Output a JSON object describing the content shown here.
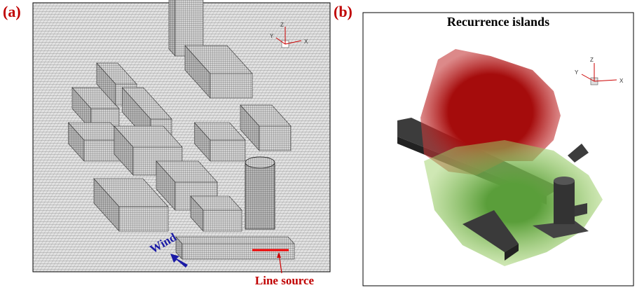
{
  "panels": [
    {
      "label": "(a)",
      "wind": "Wind",
      "source": "Line source",
      "axes": {
        "x": "X",
        "y": "Y",
        "z": "Z"
      }
    },
    {
      "label": "(b)",
      "title": "Recurrence islands",
      "axes": {
        "x": "X",
        "y": "Y",
        "z": "Z"
      }
    }
  ]
}
